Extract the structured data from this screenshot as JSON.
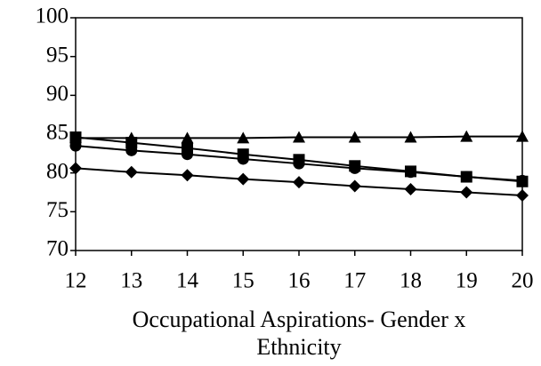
{
  "chart_data": {
    "type": "line",
    "xlabel": "Occupational Aspirations- Gender x Ethnicity",
    "x": [
      12,
      13,
      14,
      15,
      16,
      17,
      18,
      19,
      20
    ],
    "xlim": [
      12,
      20
    ],
    "xticks": [
      12,
      13,
      14,
      15,
      16,
      17,
      18,
      19,
      20
    ],
    "ylim": [
      70,
      100
    ],
    "yticks": [
      70,
      75,
      80,
      85,
      90,
      95,
      100
    ],
    "grid": false,
    "series": [
      {
        "color": "#000000",
        "marker": "diamond",
        "values": [
          80.6,
          80.1,
          79.7,
          79.2,
          78.8,
          78.3,
          77.9,
          77.5,
          77.1
        ]
      },
      {
        "color": "#000000",
        "marker": "square",
        "values": [
          84.6,
          83.9,
          83.2,
          82.4,
          81.7,
          80.9,
          80.2,
          79.5,
          78.9
        ]
      },
      {
        "color": "#000000",
        "marker": "triangle",
        "values": [
          84.5,
          84.5,
          84.5,
          84.5,
          84.6,
          84.6,
          84.6,
          84.7,
          84.7
        ]
      },
      {
        "color": "#000000",
        "marker": "circle",
        "values": [
          83.5,
          82.9,
          82.4,
          81.8,
          81.2,
          80.6,
          80.1,
          79.5,
          79.0
        ]
      }
    ]
  }
}
